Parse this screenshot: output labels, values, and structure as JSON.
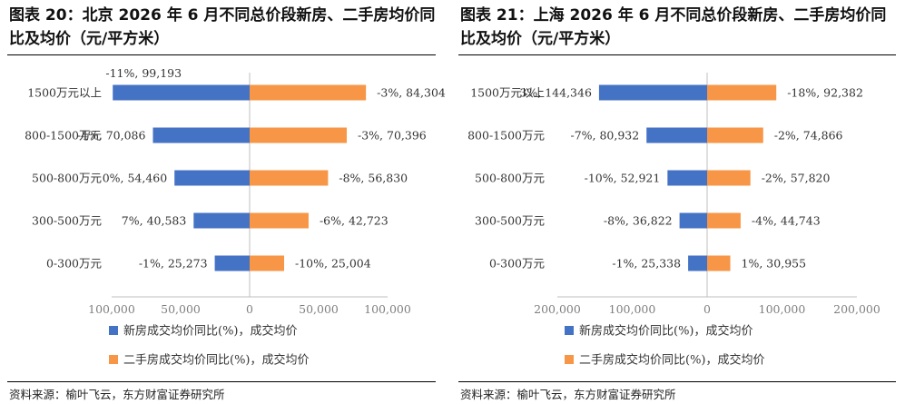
{
  "charts": [
    {
      "title": "图表 20：北京 2026 年 6 月不同总价段新房、二手房均价同比及均价（元/平方米）",
      "source": "资料来源：榆叶飞云，东方财富证券研究所"
    },
    {
      "title": "图表 21：上海 2026 年 6 月不同总价段新房、二手房均价同比及均价（元/平方米）",
      "source": "资料来源：榆叶飞云，东方财富证券研究所"
    }
  ],
  "chart_data": [
    {
      "type": "bar",
      "orientation": "horizontal-diverging",
      "title": "图表 20：北京 2026 年 6 月不同总价段新房、二手房均价同比及均价（元/平方米）",
      "categories": [
        "1500万元以上",
        "800-1500万元",
        "500-800万元",
        "300-500万元",
        "0-300万元"
      ],
      "series": [
        {
          "name": "新房成交均价同比(%)，成交均价",
          "color": "#4472C4",
          "direction": "left",
          "values": [
            99193,
            70086,
            54460,
            40583,
            25273
          ],
          "labels": [
            "-11%, 99,193",
            "-4%, 70,086",
            "0%, 54,460",
            "7%, 40,583",
            "-1%, 25,273"
          ]
        },
        {
          "name": "二手房成交均价同比(%)，成交均价",
          "color": "#F79646",
          "direction": "right",
          "values": [
            84304,
            70396,
            56830,
            42723,
            25004
          ],
          "labels": [
            "-3%, 84,304",
            "-3%, 70,396",
            "-8%, 56,830",
            "-6%, 42,723",
            "-10%, 25,004"
          ]
        }
      ],
      "xticks": [
        "100,000",
        "50,000",
        "0",
        "50,000",
        "100,000"
      ],
      "xlim": [
        -100000,
        100000
      ],
      "grid": false,
      "legend": "bottom"
    },
    {
      "type": "bar",
      "orientation": "horizontal-diverging",
      "title": "图表 21：上海 2026 年 6 月不同总价段新房、二手房均价同比及均价（元/平方米）",
      "categories": [
        "1500万元以上",
        "800-1500万元",
        "500-800万元",
        "300-500万元",
        "0-300万元"
      ],
      "series": [
        {
          "name": "新房成交均价同比(%)，成交均价",
          "color": "#4472C4",
          "direction": "left",
          "values": [
            144346,
            80932,
            52921,
            36822,
            25338
          ],
          "labels": [
            "3%, 144,346",
            "-7%, 80,932",
            "-10%, 52,921",
            "-8%, 36,822",
            "-1%, 25,338"
          ]
        },
        {
          "name": "二手房成交均价同比(%)，成交均价",
          "color": "#F79646",
          "direction": "right",
          "values": [
            92382,
            74866,
            57820,
            44743,
            30955
          ],
          "labels": [
            "-18%, 92,382",
            "-2%, 74,866",
            "-2%, 57,820",
            "-4%, 44,743",
            "1%, 30,955"
          ]
        }
      ],
      "xticks": [
        "200,000",
        "100,000",
        "0",
        "100,000",
        "200,000"
      ],
      "xlim": [
        -200000,
        200000
      ],
      "grid": false,
      "legend": "bottom"
    }
  ]
}
